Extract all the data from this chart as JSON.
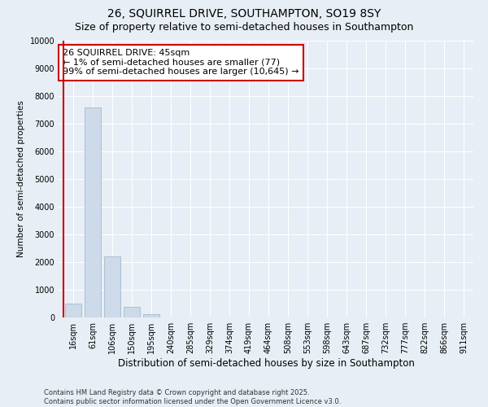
{
  "title1": "26, SQUIRREL DRIVE, SOUTHAMPTON, SO19 8SY",
  "title2": "Size of property relative to semi-detached houses in Southampton",
  "xlabel": "Distribution of semi-detached houses by size in Southampton",
  "ylabel": "Number of semi-detached properties",
  "categories": [
    "16sqm",
    "61sqm",
    "106sqm",
    "150sqm",
    "195sqm",
    "240sqm",
    "285sqm",
    "329sqm",
    "374sqm",
    "419sqm",
    "464sqm",
    "508sqm",
    "553sqm",
    "598sqm",
    "643sqm",
    "687sqm",
    "732sqm",
    "777sqm",
    "822sqm",
    "866sqm",
    "911sqm"
  ],
  "values": [
    500,
    7600,
    2200,
    380,
    110,
    0,
    0,
    0,
    0,
    0,
    0,
    0,
    0,
    0,
    0,
    0,
    0,
    0,
    0,
    0,
    0
  ],
  "bar_color": "#ccdaea",
  "bar_edge_color": "#a0bbcc",
  "annotation_text": "26 SQUIRREL DRIVE: 45sqm\n← 1% of semi-detached houses are smaller (77)\n99% of semi-detached houses are larger (10,645) →",
  "annotation_box_color": "#ffffff",
  "annotation_box_edge_color": "#cc0000",
  "vline_color": "#cc0000",
  "ylim": [
    0,
    10000
  ],
  "yticks": [
    0,
    1000,
    2000,
    3000,
    4000,
    5000,
    6000,
    7000,
    8000,
    9000,
    10000
  ],
  "background_color": "#e8eef5",
  "plot_bg_color": "#e8eef5",
  "footnote": "Contains HM Land Registry data © Crown copyright and database right 2025.\nContains public sector information licensed under the Open Government Licence v3.0.",
  "title1_fontsize": 10,
  "title2_fontsize": 9,
  "xlabel_fontsize": 8.5,
  "ylabel_fontsize": 7.5,
  "tick_fontsize": 7,
  "annotation_fontsize": 8,
  "footnote_fontsize": 6
}
